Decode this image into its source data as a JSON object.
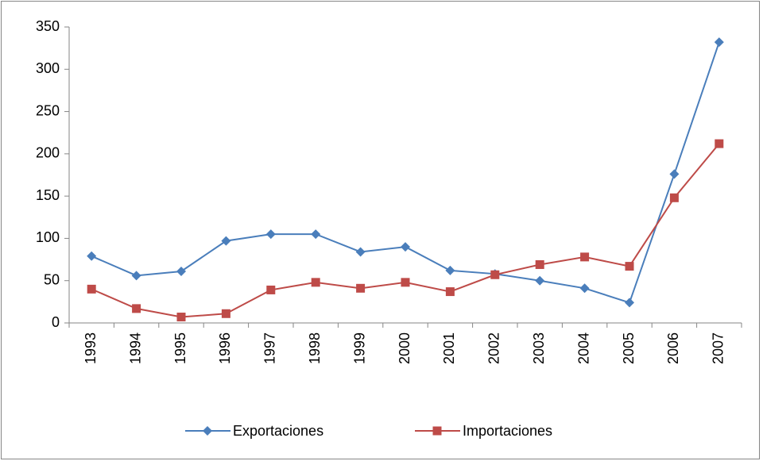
{
  "chart_data": {
    "type": "line",
    "categories": [
      "1993",
      "1994",
      "1995",
      "1996",
      "1997",
      "1998",
      "1999",
      "2000",
      "2001",
      "2002",
      "2003",
      "2004",
      "2005",
      "2006",
      "2007"
    ],
    "series": [
      {
        "name": "Exportaciones",
        "color": "#4a7ebb",
        "marker": "diamond",
        "values": [
          79,
          56,
          61,
          97,
          105,
          105,
          84,
          90,
          62,
          58,
          50,
          41,
          24,
          176,
          332
        ]
      },
      {
        "name": "Importaciones",
        "color": "#be4b48",
        "marker": "square",
        "values": [
          40,
          17,
          7,
          11,
          39,
          48,
          41,
          48,
          37,
          57,
          69,
          78,
          67,
          148,
          212
        ]
      }
    ],
    "ylim": [
      0,
      350
    ],
    "yticks": [
      0,
      50,
      100,
      150,
      200,
      250,
      300,
      350
    ],
    "grid": false,
    "legend": "bottom"
  }
}
